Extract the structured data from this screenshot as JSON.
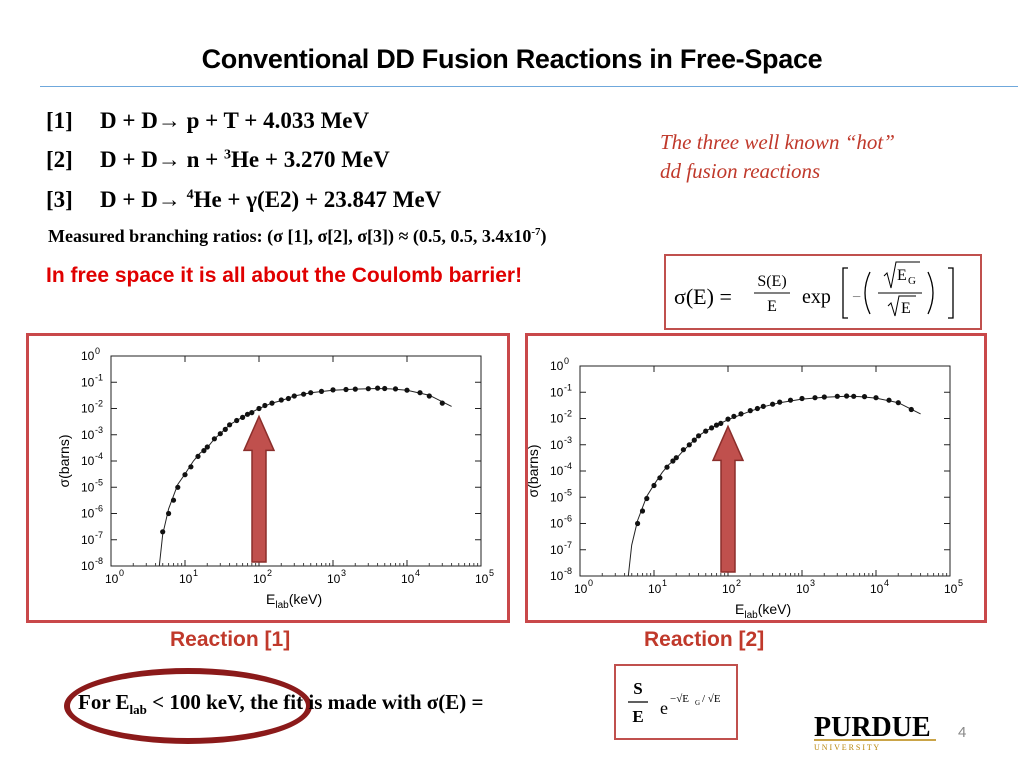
{
  "slide": {
    "title": "Conventional DD Fusion Reactions in Free-Space",
    "page_number": "4"
  },
  "reactions": [
    {
      "id": "[1]",
      "prefix": "D + D→ p + T + 4.033 MeV",
      "sup": "",
      "suffix": ""
    },
    {
      "id": "[2]",
      "prefix": "D + D→ n + ",
      "sup": "3",
      "suffix": "He + 3.270 MeV"
    },
    {
      "id": "[3]",
      "prefix": "D + D→ ",
      "sup": "4",
      "suffix": "He + γ(E2) + 23.847 MeV"
    }
  ],
  "branching": {
    "text": "Measured branching ratios: (σ [1], σ[2], σ[3]) ≈ (0.5,  0.5,  3.4x10",
    "exp": "-7",
    "close": ")"
  },
  "note": {
    "line1": "The three well known “hot”",
    "line2": "dd fusion reactions"
  },
  "coulomb_text": "In free space it is all about the Coulomb barrier!",
  "equation1": {
    "lhs": "σ(E) =",
    "num": "S(E)",
    "den": "E",
    "exp": "exp",
    "minus": "−",
    "eg": "E",
    "eg_sub": "G",
    "e": "E"
  },
  "equation2": {
    "num": "S",
    "den": "E",
    "base": "e",
    "exponent": "−√E",
    "exp_sub": "G",
    "exp_tail": " / √E"
  },
  "captions": {
    "reaction1": "Reaction [1]",
    "reaction2": "Reaction [2]"
  },
  "footer_text": {
    "pre": "For E",
    "sub": "lab",
    "post": " <  100 keV,  the fit is made with  σ(E) ="
  },
  "logo": {
    "name": "PURDUE",
    "sub": "U N I V E R S I T Y"
  },
  "chart_data": [
    {
      "type": "scatter",
      "title": "",
      "xlabel": "E",
      "xlabel_sub": "lab",
      "xlabel_tail": "(keV)",
      "ylabel": "σ(barns)",
      "xscale": "log",
      "yscale": "log",
      "xlim": [
        1,
        100000
      ],
      "ylim": [
        1e-08,
        1
      ],
      "x_ticks": [
        "10",
        "10",
        "10",
        "10",
        "10",
        "10"
      ],
      "x_tick_exp": [
        "0",
        "1",
        "2",
        "3",
        "4",
        "5"
      ],
      "y_ticks": [
        "10",
        "10",
        "10",
        "10",
        "10",
        "10",
        "10",
        "10",
        "10"
      ],
      "y_tick_exp": [
        "0",
        "-1",
        "-2",
        "-3",
        "-4",
        "-5",
        "-6",
        "-7",
        "-8"
      ],
      "fit_curve": {
        "x": [
          4.5,
          5,
          6,
          8,
          10,
          13,
          16,
          20,
          25,
          30,
          40,
          50,
          70,
          100,
          150,
          200,
          300,
          500,
          1000,
          2000,
          4000,
          6000,
          10000,
          20000,
          40000
        ],
        "y": [
          1e-08,
          1.6e-07,
          1.5e-06,
          1.3e-05,
          3.2e-05,
          0.0001,
          0.0002,
          0.00032,
          0.0007,
          0.0011,
          0.0024,
          0.0035,
          0.006,
          0.01,
          0.016,
          0.02,
          0.03,
          0.04,
          0.05,
          0.055,
          0.058,
          0.056,
          0.05,
          0.032,
          0.012
        ]
      },
      "points": {
        "x": [
          5,
          6,
          7,
          8,
          10,
          12,
          15,
          18,
          20,
          25,
          30,
          35,
          40,
          50,
          60,
          70,
          80,
          100,
          120,
          150,
          200,
          250,
          300,
          400,
          500,
          700,
          1000,
          1500,
          2000,
          3000,
          4000,
          5000,
          7000,
          10000,
          15000,
          20000,
          30000
        ],
        "y": [
          2e-07,
          1e-06,
          3.2e-06,
          1e-05,
          3e-05,
          6e-05,
          0.00015,
          0.00025,
          0.00034,
          0.0007,
          0.0011,
          0.0016,
          0.0024,
          0.0035,
          0.0046,
          0.006,
          0.007,
          0.01,
          0.013,
          0.016,
          0.021,
          0.024,
          0.03,
          0.035,
          0.04,
          0.045,
          0.051,
          0.053,
          0.055,
          0.057,
          0.06,
          0.058,
          0.056,
          0.05,
          0.04,
          0.03,
          0.016
        ]
      },
      "arrow_at_x": 100
    },
    {
      "type": "scatter",
      "title": "",
      "xlabel": "E",
      "xlabel_sub": "lab",
      "xlabel_tail": "(keV)",
      "ylabel": "σ(barns)",
      "xscale": "log",
      "yscale": "log",
      "xlim": [
        1,
        100000
      ],
      "ylim": [
        1e-08,
        1
      ],
      "x_ticks": [
        "10",
        "10",
        "10",
        "10",
        "10",
        "10"
      ],
      "x_tick_exp": [
        "0",
        "1",
        "2",
        "3",
        "4",
        "5"
      ],
      "y_ticks": [
        "10",
        "10",
        "10",
        "10",
        "10",
        "10",
        "10",
        "10",
        "10"
      ],
      "y_tick_exp": [
        "0",
        "-1",
        "-2",
        "-3",
        "-4",
        "-5",
        "-6",
        "-7",
        "-8"
      ],
      "fit_curve": {
        "x": [
          4.5,
          5,
          6,
          8,
          10,
          13,
          16,
          20,
          25,
          30,
          40,
          50,
          70,
          100,
          150,
          200,
          300,
          500,
          1000,
          2000,
          4000,
          6000,
          10000,
          20000,
          40000
        ],
        "y": [
          1e-08,
          1.5e-07,
          1.3e-06,
          1.1e-05,
          3e-05,
          9e-05,
          0.00018,
          0.0003,
          0.0006,
          0.001,
          0.0022,
          0.0033,
          0.0055,
          0.009,
          0.014,
          0.019,
          0.028,
          0.04,
          0.055,
          0.065,
          0.07,
          0.068,
          0.06,
          0.04,
          0.015
        ]
      },
      "points": {
        "x": [
          6,
          7,
          8,
          10,
          12,
          15,
          18,
          20,
          25,
          30,
          35,
          40,
          50,
          60,
          70,
          80,
          100,
          120,
          150,
          200,
          250,
          300,
          400,
          500,
          700,
          1000,
          1500,
          2000,
          3000,
          4000,
          5000,
          7000,
          10000,
          15000,
          20000,
          30000
        ],
        "y": [
          1e-06,
          3e-06,
          9e-06,
          2.8e-05,
          5.5e-05,
          0.00014,
          0.00024,
          0.00032,
          0.00065,
          0.001,
          0.0015,
          0.0022,
          0.0033,
          0.0044,
          0.0056,
          0.0065,
          0.0095,
          0.012,
          0.015,
          0.02,
          0.024,
          0.029,
          0.035,
          0.042,
          0.05,
          0.058,
          0.062,
          0.066,
          0.07,
          0.072,
          0.07,
          0.068,
          0.062,
          0.05,
          0.04,
          0.022
        ]
      },
      "arrow_at_x": 100
    }
  ]
}
